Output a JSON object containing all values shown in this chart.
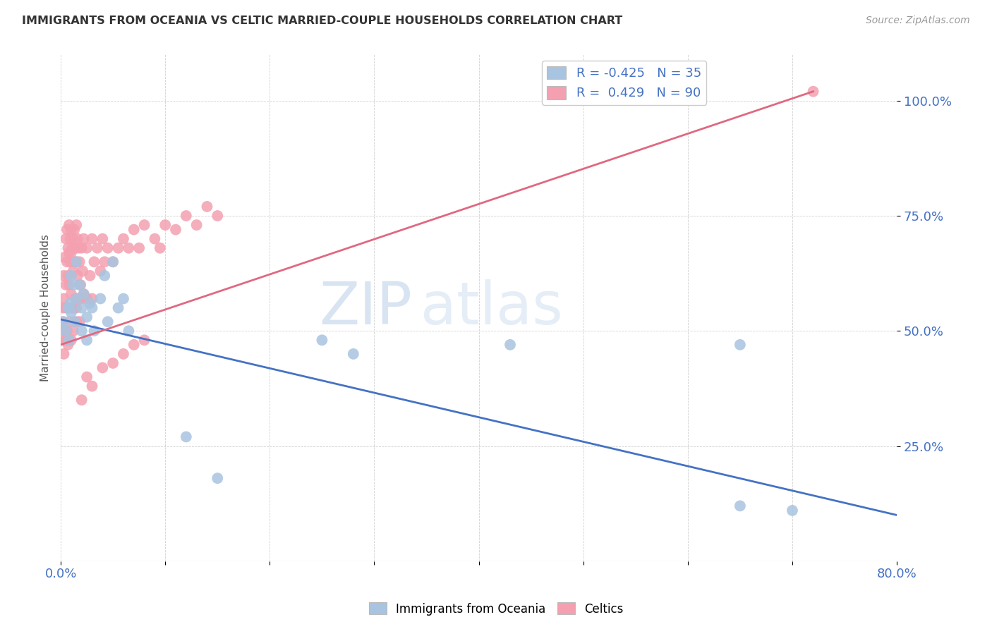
{
  "title": "IMMIGRANTS FROM OCEANIA VS CELTIC MARRIED-COUPLE HOUSEHOLDS CORRELATION CHART",
  "source": "Source: ZipAtlas.com",
  "ylabel": "Married-couple Households",
  "y_ticks": [
    0.25,
    0.5,
    0.75,
    1.0
  ],
  "y_tick_labels": [
    "25.0%",
    "50.0%",
    "75.0%",
    "100.0%"
  ],
  "x_range": [
    0.0,
    0.8
  ],
  "y_range": [
    0.0,
    1.1
  ],
  "blue_color": "#a8c4e0",
  "pink_color": "#f4a0b0",
  "blue_line_color": "#4472c4",
  "pink_line_color": "#e06880",
  "blue_R": -0.425,
  "blue_N": 35,
  "pink_R": 0.429,
  "pink_N": 90,
  "blue_line_x0": 0.0,
  "blue_line_y0": 0.525,
  "blue_line_x1": 0.8,
  "blue_line_y1": 0.1,
  "pink_line_x0": 0.0,
  "pink_line_y0": 0.47,
  "pink_line_x1": 0.72,
  "pink_line_y1": 1.02,
  "blue_points_x": [
    0.003,
    0.005,
    0.007,
    0.008,
    0.009,
    0.01,
    0.01,
    0.012,
    0.013,
    0.015,
    0.015,
    0.018,
    0.02,
    0.02,
    0.022,
    0.025,
    0.025,
    0.028,
    0.03,
    0.032,
    0.038,
    0.042,
    0.045,
    0.05,
    0.055,
    0.06,
    0.065,
    0.12,
    0.15,
    0.25,
    0.28,
    0.43,
    0.65,
    0.65,
    0.7
  ],
  "blue_points_y": [
    0.52,
    0.5,
    0.55,
    0.48,
    0.56,
    0.62,
    0.54,
    0.6,
    0.52,
    0.65,
    0.57,
    0.6,
    0.55,
    0.5,
    0.58,
    0.53,
    0.48,
    0.56,
    0.55,
    0.5,
    0.57,
    0.62,
    0.52,
    0.65,
    0.55,
    0.57,
    0.5,
    0.27,
    0.18,
    0.48,
    0.45,
    0.47,
    0.12,
    0.47,
    0.11
  ],
  "pink_points_x": [
    0.001,
    0.002,
    0.002,
    0.003,
    0.003,
    0.003,
    0.004,
    0.004,
    0.005,
    0.005,
    0.005,
    0.005,
    0.006,
    0.006,
    0.006,
    0.007,
    0.007,
    0.007,
    0.008,
    0.008,
    0.008,
    0.008,
    0.009,
    0.009,
    0.009,
    0.01,
    0.01,
    0.01,
    0.01,
    0.011,
    0.011,
    0.012,
    0.012,
    0.012,
    0.013,
    0.013,
    0.013,
    0.014,
    0.014,
    0.015,
    0.015,
    0.015,
    0.016,
    0.016,
    0.017,
    0.017,
    0.018,
    0.018,
    0.019,
    0.02,
    0.02,
    0.021,
    0.022,
    0.022,
    0.025,
    0.025,
    0.028,
    0.03,
    0.03,
    0.032,
    0.035,
    0.038,
    0.04,
    0.042,
    0.045,
    0.05,
    0.055,
    0.06,
    0.065,
    0.07,
    0.075,
    0.08,
    0.09,
    0.095,
    0.1,
    0.11,
    0.12,
    0.13,
    0.14,
    0.15,
    0.015,
    0.02,
    0.025,
    0.03,
    0.04,
    0.05,
    0.06,
    0.07,
    0.08,
    0.72
  ],
  "pink_points_y": [
    0.52,
    0.55,
    0.48,
    0.62,
    0.57,
    0.45,
    0.66,
    0.5,
    0.7,
    0.6,
    0.55,
    0.48,
    0.72,
    0.65,
    0.5,
    0.68,
    0.62,
    0.47,
    0.73,
    0.67,
    0.6,
    0.52,
    0.7,
    0.65,
    0.55,
    0.72,
    0.67,
    0.58,
    0.48,
    0.68,
    0.55,
    0.7,
    0.63,
    0.5,
    0.72,
    0.65,
    0.55,
    0.68,
    0.57,
    0.73,
    0.65,
    0.55,
    0.7,
    0.62,
    0.68,
    0.57,
    0.65,
    0.52,
    0.6,
    0.68,
    0.57,
    0.63,
    0.7,
    0.58,
    0.68,
    0.57,
    0.62,
    0.7,
    0.57,
    0.65,
    0.68,
    0.63,
    0.7,
    0.65,
    0.68,
    0.65,
    0.68,
    0.7,
    0.68,
    0.72,
    0.68,
    0.73,
    0.7,
    0.68,
    0.73,
    0.72,
    0.75,
    0.73,
    0.77,
    0.75,
    0.52,
    0.35,
    0.4,
    0.38,
    0.42,
    0.43,
    0.45,
    0.47,
    0.48,
    1.02
  ]
}
